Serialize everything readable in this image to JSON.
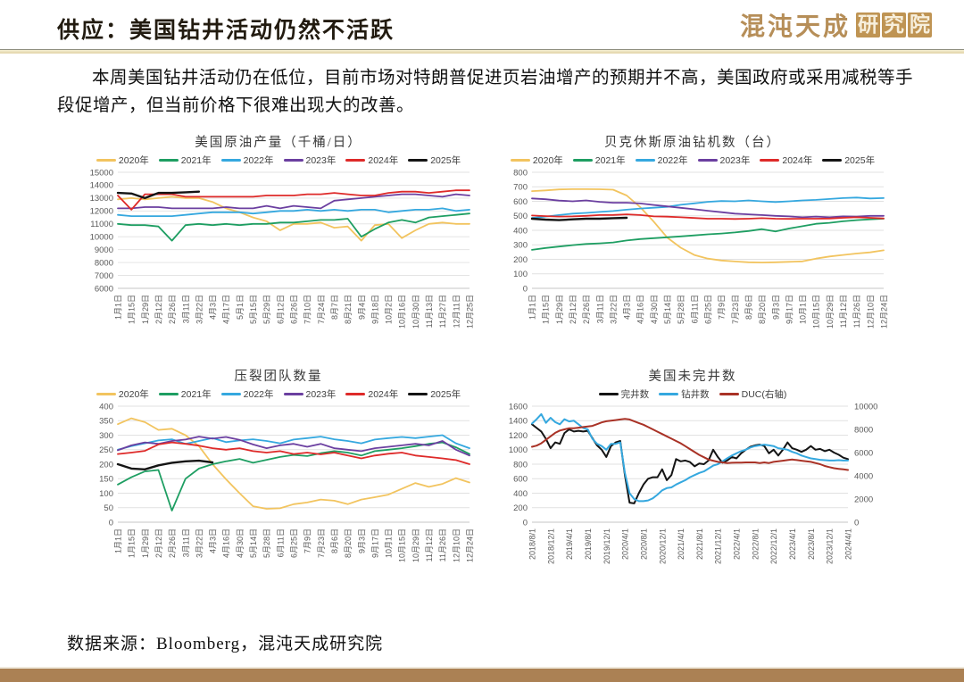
{
  "header": {
    "title": "供应：美国钻井活动仍然不活跃",
    "logo_text": "混沌天成",
    "logo_badge": [
      "研",
      "究",
      "院"
    ]
  },
  "body_text": "本周美国钻井活动仍在低位，目前市场对特朗普促进页岩油增产的预期并不高，美国政府或采用减税等手段促增产，但当前价格下很难出现大的改善。",
  "footer": {
    "source": "数据来源：Bloomberg，混沌天成研究院"
  },
  "colors": {
    "y2020": "#F2C45F",
    "y2021": "#1E9E62",
    "y2022": "#35A8DF",
    "y2023": "#6B3FA0",
    "y2024": "#DE2A29",
    "y2025": "#141414",
    "duc": "#A93226",
    "brand_gold": "#B68E58",
    "bottom_bar": "#AB8154"
  },
  "chart_data": [
    {
      "type": "line",
      "title": "美国原油产量（千桶/日）",
      "legend_position": "top",
      "grid": true,
      "y_left": {
        "min": 6000,
        "max": 15000,
        "step": 1000
      },
      "x_labels": [
        "1月1日",
        "1月15日",
        "1月29日",
        "2月12日",
        "2月26日",
        "3月11日",
        "3月22日",
        "4月3日",
        "4月17日",
        "5月1日",
        "5月15日",
        "5月29日",
        "6月12日",
        "6月26日",
        "7月10日",
        "7月24日",
        "8月7日",
        "8月21日",
        "9月4日",
        "9月18日",
        "10月2日",
        "10月16日",
        "10月30日",
        "11月13日",
        "11月27日",
        "12月11日",
        "12月25日"
      ],
      "series": [
        {
          "name": "2020年",
          "color": "#F2C45F",
          "values": [
            12900,
            13000,
            12900,
            13000,
            13100,
            13000,
            13000,
            12700,
            12200,
            11900,
            11500,
            11200,
            10500,
            11000,
            11000,
            11100,
            10700,
            10800,
            9700,
            10900,
            11000,
            9900,
            10500,
            11000,
            11100,
            11000,
            11000
          ]
        },
        {
          "name": "2021年",
          "color": "#1E9E62",
          "values": [
            11000,
            10900,
            10900,
            10800,
            9700,
            10900,
            11000,
            10900,
            11000,
            10900,
            11000,
            11000,
            11100,
            11100,
            11200,
            11300,
            11300,
            11400,
            10000,
            10600,
            11100,
            11300,
            11100,
            11500,
            11600,
            11700,
            11800
          ]
        },
        {
          "name": "2022年",
          "color": "#35A8DF",
          "values": [
            11700,
            11600,
            11600,
            11600,
            11600,
            11700,
            11800,
            11900,
            11900,
            11900,
            11800,
            11900,
            12000,
            12000,
            12100,
            12000,
            12100,
            12000,
            12100,
            12100,
            11900,
            12000,
            12100,
            12100,
            12200,
            12000,
            12100
          ]
        },
        {
          "name": "2023年",
          "color": "#6B3FA0",
          "values": [
            12200,
            12200,
            12300,
            12300,
            12200,
            12200,
            12200,
            12200,
            12300,
            12200,
            12200,
            12400,
            12200,
            12400,
            12300,
            12200,
            12800,
            12900,
            13000,
            13100,
            13200,
            13300,
            13300,
            13200,
            13100,
            13300,
            13200
          ]
        },
        {
          "name": "2024年",
          "color": "#DE2A29",
          "values": [
            13200,
            12100,
            13300,
            13300,
            13300,
            13100,
            13100,
            13100,
            13100,
            13100,
            13100,
            13200,
            13200,
            13200,
            13300,
            13300,
            13400,
            13300,
            13200,
            13200,
            13400,
            13500,
            13500,
            13400,
            13500,
            13600,
            13600
          ]
        },
        {
          "name": "2025年",
          "color": "#141414",
          "width": 2.4,
          "values": [
            13400,
            13350,
            13000,
            13400,
            13400,
            13450,
            13500
          ]
        }
      ]
    },
    {
      "type": "line",
      "title": "贝克休斯原油钻机数（台）",
      "legend_position": "top",
      "grid": true,
      "y_left": {
        "min": 0,
        "max": 800,
        "step": 100
      },
      "x_labels": [
        "1月1日",
        "1月15日",
        "1月29日",
        "2月12日",
        "2月26日",
        "3月11日",
        "3月22日",
        "4月3日",
        "4月16日",
        "4月30日",
        "5月14日",
        "5月28日",
        "6月11日",
        "6月25日",
        "7月9日",
        "7月23日",
        "8月6日",
        "8月20日",
        "9月3日",
        "9月17日",
        "10月1日",
        "10月15日",
        "10月29日",
        "11月12日",
        "11月26日",
        "12月10日",
        "12月24日"
      ],
      "series": [
        {
          "name": "2020年",
          "color": "#F2C45F",
          "values": [
            670,
            675,
            682,
            684,
            684,
            683,
            680,
            640,
            560,
            460,
            350,
            280,
            230,
            205,
            192,
            185,
            180,
            178,
            180,
            183,
            186,
            205,
            220,
            230,
            240,
            248,
            262
          ]
        },
        {
          "name": "2021年",
          "color": "#1E9E62",
          "values": [
            265,
            278,
            288,
            298,
            306,
            310,
            316,
            330,
            340,
            346,
            352,
            358,
            365,
            372,
            378,
            385,
            395,
            408,
            392,
            412,
            428,
            445,
            452,
            462,
            470,
            476,
            480
          ]
        },
        {
          "name": "2022年",
          "color": "#35A8DF",
          "values": [
            485,
            495,
            505,
            515,
            520,
            527,
            533,
            542,
            550,
            556,
            562,
            576,
            586,
            596,
            602,
            600,
            606,
            600,
            595,
            600,
            606,
            610,
            616,
            622,
            626,
            620,
            622
          ]
        },
        {
          "name": "2023年",
          "color": "#6B3FA0",
          "values": [
            620,
            614,
            605,
            600,
            606,
            596,
            590,
            590,
            585,
            575,
            565,
            555,
            545,
            535,
            525,
            515,
            510,
            505,
            500,
            496,
            490,
            495,
            490,
            496,
            495,
            500,
            500
          ]
        },
        {
          "name": "2024年",
          "color": "#DE2A29",
          "values": [
            502,
            498,
            495,
            496,
            500,
            505,
            506,
            510,
            505,
            496,
            494,
            490,
            485,
            480,
            480,
            478,
            480,
            484,
            480,
            479,
            480,
            480,
            481,
            486,
            490,
            486,
            482
          ]
        },
        {
          "name": "2025年",
          "color": "#141414",
          "width": 2.4,
          "values": [
            480,
            474,
            470,
            476,
            480,
            480,
            484,
            486
          ]
        }
      ]
    },
    {
      "type": "line",
      "title": "压裂团队数量",
      "legend_position": "top",
      "grid": true,
      "y_left": {
        "min": 0,
        "max": 400,
        "step": 50
      },
      "x_labels": [
        "1月1日",
        "1月15日",
        "1月29日",
        "2月12日",
        "2月26日",
        "3月11日",
        "3月22日",
        "4月3日",
        "4月16日",
        "4月30日",
        "5月14日",
        "5月28日",
        "6月11日",
        "6月25日",
        "7月9日",
        "7月23日",
        "8月6日",
        "8月20日",
        "9月3日",
        "9月17日",
        "10月1日",
        "10月15日",
        "10月29日",
        "11月12日",
        "11月26日",
        "12月10日",
        "12月24日"
      ],
      "series": [
        {
          "name": "2020年",
          "color": "#F2C45F",
          "values": [
            338,
            358,
            345,
            318,
            322,
            300,
            262,
            200,
            148,
            100,
            55,
            46,
            48,
            62,
            68,
            78,
            74,
            62,
            78,
            86,
            95,
            115,
            135,
            122,
            132,
            152,
            137
          ]
        },
        {
          "name": "2021年",
          "color": "#1E9E62",
          "values": [
            130,
            155,
            175,
            180,
            40,
            150,
            185,
            200,
            210,
            218,
            205,
            215,
            225,
            232,
            228,
            238,
            245,
            240,
            230,
            245,
            250,
            255,
            262,
            270,
            275,
            258,
            235
          ]
        },
        {
          "name": "2022年",
          "color": "#35A8DF",
          "values": [
            250,
            262,
            272,
            282,
            286,
            270,
            280,
            290,
            276,
            282,
            286,
            280,
            272,
            285,
            290,
            295,
            286,
            280,
            272,
            285,
            290,
            294,
            290,
            295,
            300,
            272,
            255
          ]
        },
        {
          "name": "2023年",
          "color": "#6B3FA0",
          "values": [
            248,
            265,
            275,
            270,
            280,
            285,
            295,
            288,
            294,
            284,
            268,
            255,
            265,
            270,
            260,
            270,
            255,
            250,
            245,
            255,
            260,
            265,
            270,
            265,
            280,
            250,
            230
          ]
        },
        {
          "name": "2024年",
          "color": "#DE2A29",
          "values": [
            235,
            240,
            246,
            268,
            275,
            270,
            264,
            255,
            250,
            255,
            245,
            240,
            245,
            235,
            240,
            234,
            240,
            230,
            220,
            230,
            236,
            240,
            230,
            225,
            220,
            214,
            200
          ]
        },
        {
          "name": "2025年",
          "color": "#141414",
          "width": 2.4,
          "values": [
            200,
            185,
            182,
            196,
            205,
            210,
            212,
            206
          ]
        }
      ]
    },
    {
      "type": "line",
      "title": "美国未完井数",
      "legend_position": "top",
      "grid": true,
      "y_left": {
        "min": 0,
        "max": 1600,
        "step": 200
      },
      "y_right": {
        "min": 0,
        "max": 10000,
        "step": 2000
      },
      "x_label_step": 4,
      "x_labels": [
        "2018/8/1",
        "2018/12/1",
        "2019/4/1",
        "2019/8/1",
        "2019/12/1",
        "2020/4/1",
        "2020/8/1",
        "2020/12/1",
        "2021/4/1",
        "2021/8/1",
        "2021/12/1",
        "2022/4/1",
        "2022/8/1",
        "2022/12/1",
        "2023/4/1",
        "2023/8/1",
        "2023/12/1",
        "2024/4/1"
      ],
      "series": [
        {
          "name": "完井数",
          "color": "#141414",
          "width": 2.0,
          "values": [
            1350,
            1300,
            1250,
            1150,
            1020,
            1100,
            1080,
            1230,
            1280,
            1250,
            1260,
            1250,
            1260,
            1160,
            1060,
            1000,
            900,
            1050,
            1100,
            1120,
            650,
            270,
            260,
            400,
            520,
            600,
            620,
            620,
            730,
            580,
            650,
            870,
            840,
            850,
            830,
            770,
            810,
            800,
            850,
            1000,
            900,
            820,
            850,
            900,
            880,
            950,
            1000,
            1040,
            1060,
            1070,
            1050,
            950,
            1000,
            920,
            1000,
            1100,
            1020,
            1000,
            970,
            1000,
            1050,
            1000,
            1010,
            980,
            1000,
            960,
            930,
            890,
            870
          ]
        },
        {
          "name": "钻井数",
          "color": "#35A8DF",
          "width": 2.0,
          "values": [
            1360,
            1420,
            1490,
            1370,
            1440,
            1380,
            1350,
            1420,
            1390,
            1400,
            1350,
            1300,
            1280,
            1150,
            1080,
            1050,
            1000,
            1080,
            1080,
            1100,
            680,
            400,
            320,
            290,
            290,
            300,
            330,
            380,
            440,
            470,
            480,
            520,
            550,
            580,
            620,
            650,
            680,
            700,
            740,
            780,
            800,
            840,
            880,
            920,
            950,
            980,
            1000,
            1030,
            1050,
            1060,
            1070,
            1060,
            1050,
            1020,
            1010,
            1000,
            970,
            950,
            920,
            900,
            880,
            870,
            860,
            855,
            850,
            850,
            855,
            850,
            850
          ]
        },
        {
          "name": "DUC(右轴)",
          "color": "#A93226",
          "width": 2.0,
          "axis": "right",
          "values": [
            6500,
            6600,
            6800,
            7100,
            7400,
            7700,
            7900,
            8000,
            8100,
            8100,
            8150,
            8200,
            8250,
            8300,
            8450,
            8600,
            8700,
            8750,
            8800,
            8850,
            8900,
            8850,
            8700,
            8550,
            8400,
            8200,
            8000,
            7800,
            7600,
            7400,
            7200,
            7000,
            6800,
            6550,
            6300,
            6050,
            5800,
            5600,
            5400,
            5300,
            5200,
            5150,
            5100,
            5120,
            5130,
            5140,
            5150,
            5150,
            5150,
            5100,
            5150,
            5100,
            5200,
            5250,
            5300,
            5350,
            5400,
            5350,
            5300,
            5250,
            5200,
            5100,
            5000,
            4850,
            4750,
            4650,
            4600,
            4550,
            4500
          ]
        }
      ]
    }
  ]
}
